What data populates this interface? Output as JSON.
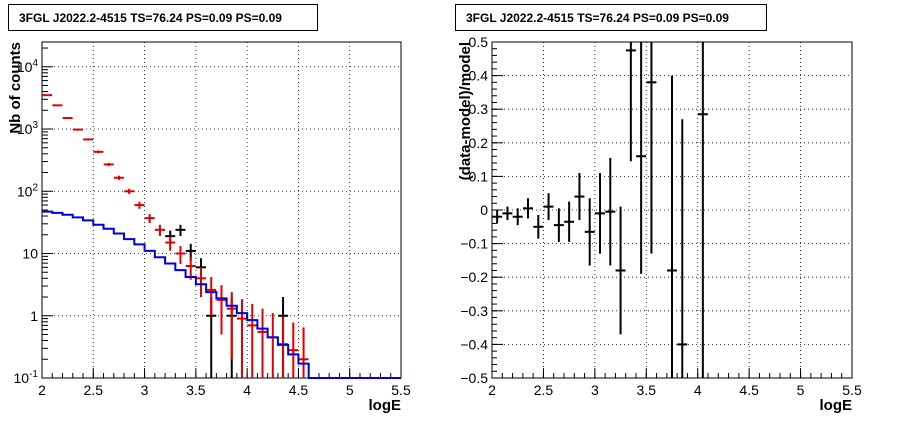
{
  "chart_data": [
    {
      "type": "scatter",
      "title": "3FGL J2022.2-4515 TS=76.24 PS=0.09 PS=0.09",
      "xlabel": "logE",
      "ylabel": "Nb of counts",
      "xlim": [
        2,
        5.5
      ],
      "ylim": [
        0.1,
        25000
      ],
      "yscale": "log",
      "grid": true,
      "x_ticks": [
        "2",
        "2.5",
        "3",
        "3.5",
        "4",
        "4.5",
        "5",
        "5.5"
      ],
      "y_ticks": [
        "10^-1",
        "1",
        "10",
        "10^2",
        "10^3",
        "10^4"
      ],
      "colors": {
        "data": "#000000",
        "model": "#e00000",
        "background": "#0000e0"
      },
      "series": [
        {
          "style": "errorbars",
          "color": "#000000",
          "x": [
            3.25,
            3.35,
            3.45,
            3.55,
            3.65,
            3.85,
            4.35
          ],
          "y": [
            19,
            24,
            11,
            6,
            1,
            1,
            1
          ],
          "err_lo": [
            4.4,
            4.9,
            3.3,
            2.4,
            1,
            1,
            1
          ],
          "err_hi": [
            4.4,
            4.9,
            3.3,
            2.4,
            1,
            1,
            1
          ]
        },
        {
          "style": "errorbars",
          "color": "#e00000",
          "x": [
            2.05,
            2.15,
            2.25,
            2.35,
            2.45,
            2.55,
            2.65,
            2.75,
            2.85,
            2.95,
            3.05,
            3.15,
            3.25,
            3.35,
            3.45,
            3.55,
            3.65,
            3.75,
            3.85,
            3.95,
            4.05,
            4.15,
            4.25,
            4.35,
            4.45,
            4.55
          ],
          "y": [
            3500,
            2400,
            1500,
            980,
            680,
            430,
            270,
            165,
            100,
            60,
            37,
            24,
            15,
            10,
            6.3,
            4,
            2.6,
            1.8,
            1.3,
            0.9,
            0.7,
            0.55,
            0.45,
            0.35,
            0.28,
            0.2
          ],
          "err_lo": [
            59,
            49,
            39,
            31,
            26,
            21,
            16,
            13,
            10,
            7.7,
            6.1,
            4.9,
            3.9,
            3.2,
            2.5,
            2,
            1.6,
            1.3,
            1.1,
            0.9,
            0.65,
            0.52,
            0.42,
            0.32,
            0.25,
            0.1
          ],
          "err_hi": [
            59,
            49,
            39,
            31,
            26,
            21,
            16,
            13,
            10,
            7.7,
            6.1,
            4.9,
            3.9,
            3.2,
            2.5,
            2,
            1.6,
            1.3,
            1.1,
            0.95,
            0.85,
            0.75,
            0.65,
            0.6,
            0.5,
            0.45
          ]
        },
        {
          "style": "step",
          "color": "#0000e0",
          "edges": [
            2.0,
            2.1,
            2.2,
            2.3,
            2.4,
            2.5,
            2.6,
            2.7,
            2.8,
            2.9,
            3.0,
            3.1,
            3.2,
            3.3,
            3.4,
            3.5,
            3.6,
            3.7,
            3.8,
            3.9,
            4.0,
            4.1,
            4.2,
            4.3,
            4.4,
            4.5,
            4.6,
            5.5
          ],
          "y": [
            47,
            45,
            42,
            38,
            34,
            29,
            25,
            21,
            17,
            14,
            11,
            8.7,
            6.9,
            5.4,
            4.2,
            3.2,
            2.4,
            1.9,
            1.45,
            1.1,
            0.85,
            0.62,
            0.45,
            0.34,
            0.24,
            0.17,
            0.1
          ]
        }
      ]
    },
    {
      "type": "scatter",
      "title": "3FGL J2022.2-4515 TS=76.24 PS=0.09 PS=0.09",
      "xlabel": "logE",
      "ylabel": "(data-model)/model",
      "xlim": [
        2,
        5.5
      ],
      "ylim": [
        -0.5,
        0.5
      ],
      "grid": true,
      "x_ticks": [
        "2",
        "2.5",
        "3",
        "3.5",
        "4",
        "4.5",
        "5",
        "5.5"
      ],
      "y_ticks": [
        "−0.5",
        "−0.4",
        "−0.3",
        "−0.2",
        "−0.1",
        "0",
        "0.1",
        "0.2",
        "0.3",
        "0.4",
        "0.5"
      ],
      "series": [
        {
          "style": "errorbars",
          "color": "#000000",
          "x": [
            2.05,
            2.15,
            2.25,
            2.35,
            2.45,
            2.55,
            2.65,
            2.75,
            2.85,
            2.95,
            3.05,
            3.15,
            3.25,
            3.35,
            3.45,
            3.55,
            3.75,
            3.85,
            4.05
          ],
          "y": [
            -0.02,
            -0.01,
            -0.02,
            0.005,
            -0.05,
            0.01,
            -0.045,
            -0.035,
            0.04,
            -0.065,
            -0.01,
            -0.005,
            -0.18,
            0.475,
            0.16,
            0.38,
            -0.18,
            -0.4,
            0.285
          ],
          "err": [
            0.02,
            0.02,
            0.025,
            0.03,
            0.035,
            0.04,
            0.05,
            0.06,
            0.07,
            0.1,
            0.12,
            0.16,
            0.19,
            0.33,
            0.35,
            0.51,
            0.58,
            0.67,
            0.8
          ]
        }
      ]
    }
  ]
}
